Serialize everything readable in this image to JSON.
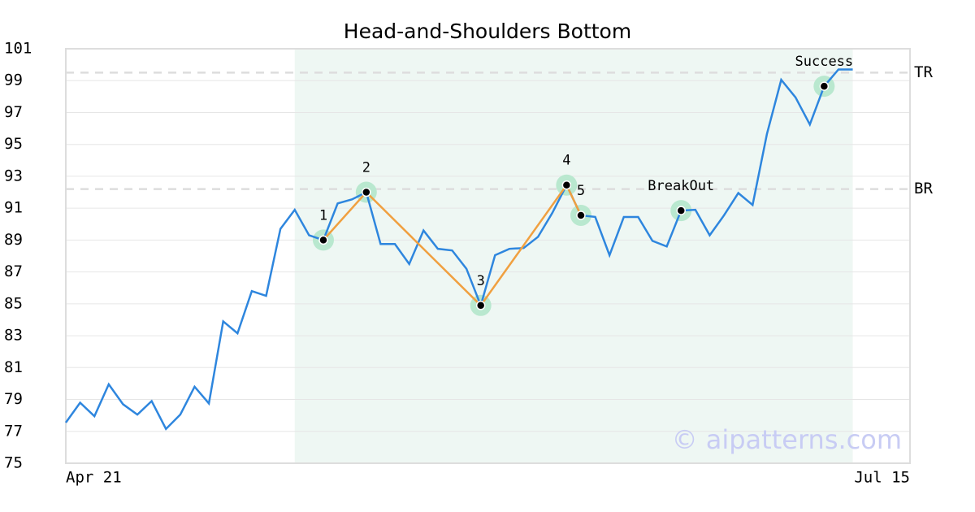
{
  "chart_data": {
    "type": "line",
    "title": "Head-and-Shoulders Bottom",
    "x": [
      0,
      1,
      2,
      3,
      4,
      5,
      6,
      7,
      8,
      9,
      10,
      11,
      12,
      13,
      14,
      15,
      16,
      17,
      18,
      19,
      20,
      21,
      22,
      23,
      24,
      25,
      26,
      27,
      28,
      29,
      30,
      31,
      32,
      33,
      34,
      35,
      36,
      37,
      38,
      39,
      40,
      41,
      42,
      43,
      44,
      45,
      46,
      47,
      48,
      49,
      50,
      51,
      52,
      53,
      54,
      55
    ],
    "values": [
      77.55,
      78.8,
      77.95,
      79.95,
      78.7,
      78.05,
      78.9,
      77.15,
      78.05,
      79.8,
      78.75,
      83.9,
      83.15,
      85.8,
      85.5,
      89.7,
      90.9,
      89.3,
      89.0,
      91.3,
      91.55,
      92.0,
      88.75,
      88.75,
      87.5,
      89.6,
      88.45,
      88.35,
      87.2,
      84.9,
      88.05,
      88.45,
      88.5,
      89.2,
      90.7,
      92.45,
      90.55,
      90.45,
      88.05,
      90.45,
      90.45,
      88.95,
      88.6,
      90.85,
      90.9,
      89.3,
      90.55,
      91.95,
      91.2,
      95.65,
      99.05,
      97.95,
      96.25,
      98.65,
      99.7,
      99.7
    ],
    "color": "#2e86de",
    "xlim": [
      0,
      59
    ],
    "xticks": [
      {
        "value": 0,
        "label": "Apr 21"
      },
      {
        "value": 59,
        "label": "Jul 15"
      }
    ],
    "ylim": [
      75,
      101
    ],
    "yticks": [
      75,
      77,
      79,
      81,
      83,
      85,
      87,
      89,
      91,
      93,
      95,
      97,
      99,
      101
    ],
    "grid": true,
    "highlight": {
      "xlim": [
        16,
        55
      ],
      "color": "#eef7f3"
    },
    "pattern_color": "#f0a040",
    "annotations": [
      {
        "label": "1",
        "x": 18,
        "pattern": true
      },
      {
        "label": "2",
        "x": 21,
        "pattern": true
      },
      {
        "label": "3",
        "x": 29,
        "pattern": true
      },
      {
        "label": "4",
        "x": 35,
        "pattern": true
      },
      {
        "label": "5",
        "x": 36,
        "pattern": true
      },
      {
        "label": "BreakOut",
        "x": 43,
        "pattern": false
      },
      {
        "label": "Success",
        "x": 53,
        "pattern": false
      }
    ],
    "hlines": [
      {
        "label": "TR",
        "value": 99.5
      },
      {
        "label": "BR",
        "value": 92.2
      }
    ],
    "watermark": "© aipatterns.com"
  }
}
